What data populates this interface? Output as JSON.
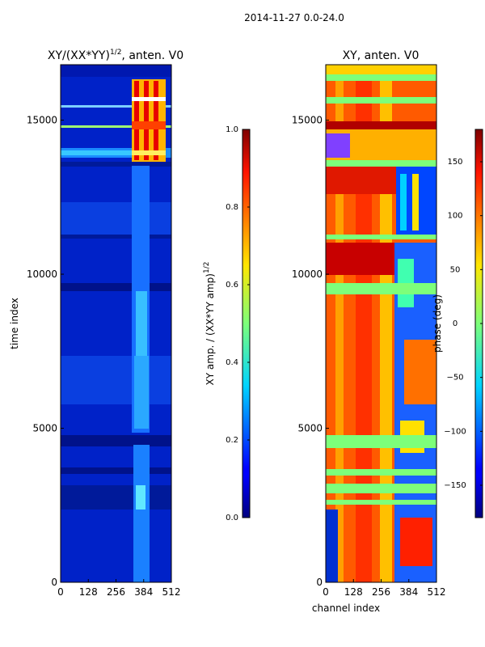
{
  "figure": {
    "suptitle": "2014-11-27 0.0-24.0"
  },
  "chart_data": [
    {
      "type": "heatmap",
      "title": "XY/(XX*YY)^(1/2), anten. V0",
      "title_main": "XY/(XX*YY)",
      "title_sup": "1/2",
      "title_tail": ", anten. V0",
      "xlabel": "",
      "ylabel": "time index",
      "xlim": [
        0,
        512
      ],
      "ylim": [
        0,
        16800
      ],
      "xticks": [
        0,
        128,
        256,
        384,
        512
      ],
      "yticks": [
        0,
        5000,
        10000,
        15000
      ],
      "colormap": "jet",
      "colorbar": {
        "label": "XY amp. / (XX*YY amp)^(1/2)",
        "label_main": "XY amp. / (XX*YY amp)",
        "label_sup": "1/2",
        "range": [
          0.0,
          1.0
        ],
        "ticks": [
          "0.0",
          "0.2",
          "0.4",
          "0.6",
          "0.8",
          "1.0"
        ],
        "tick_values": [
          0.0,
          0.2,
          0.4,
          0.6,
          0.8,
          1.0
        ]
      },
      "description_regions": [
        {
          "channels": [
            0,
            512
          ],
          "time": [
            0,
            13600
          ],
          "value_approx": 0.1
        },
        {
          "channels": [
            330,
            420
          ],
          "time": [
            0,
            13600
          ],
          "value_approx": 0.35
        },
        {
          "channels": [
            330,
            512
          ],
          "time": [
            13600,
            16200
          ],
          "value_approx": 0.85
        },
        {
          "channels": [
            0,
            330
          ],
          "time": [
            13600,
            14000
          ],
          "value_approx": 0.4
        }
      ]
    },
    {
      "type": "heatmap",
      "title": "XY, anten. V0",
      "xlabel": "channel index",
      "ylabel": "",
      "xlim": [
        0,
        512
      ],
      "ylim": [
        0,
        16800
      ],
      "xticks": [
        0,
        128,
        256,
        384,
        512
      ],
      "yticks": [
        0,
        5000,
        10000,
        15000
      ],
      "colormap": "jet",
      "colorbar": {
        "label": "phase (deg)",
        "range": [
          -180,
          180
        ],
        "ticks": [
          "−150",
          "−100",
          "−50",
          "0",
          "50",
          "100",
          "150"
        ],
        "tick_values": [
          -150,
          -100,
          -50,
          0,
          50,
          100,
          150
        ]
      },
      "description_regions": [
        {
          "channels": [
            0,
            512
          ],
          "time": [
            0,
            16800
          ],
          "value_approx": 120
        },
        {
          "channels": [
            330,
            512
          ],
          "time": [
            0,
            13000
          ],
          "value_approx": -90
        },
        {
          "channels": [
            0,
            512
          ],
          "time": [
            4300,
            4700
          ],
          "value_approx": 0
        }
      ]
    }
  ]
}
